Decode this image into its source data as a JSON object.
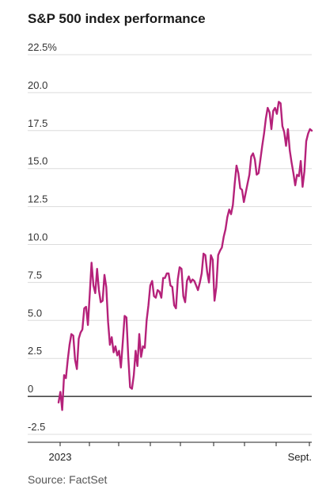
{
  "chart_data": {
    "type": "line",
    "title": "S&P 500 index performance",
    "source": "Source: FactSet",
    "ylim": [
      -2.5,
      22.5
    ],
    "y_ticks": [
      -2.5,
      0,
      2.5,
      5.0,
      7.5,
      10.0,
      12.5,
      15.0,
      17.5,
      20.0,
      22.5
    ],
    "y_tick_labels": [
      "-2.5",
      "0",
      "2.5",
      "5.0",
      "7.5",
      "10.0",
      "12.5",
      "15.0",
      "17.5",
      "20.0",
      "22.5%"
    ],
    "x_tick_labels": [
      "2023",
      "Sept."
    ],
    "grid": true,
    "series_color": "#b5227a",
    "series": [
      {
        "values": [
          -0.4,
          0.3,
          -0.9,
          1.4,
          1.2,
          2.4,
          3.4,
          4.1,
          4.0,
          2.4,
          1.8,
          3.8,
          4.2,
          4.4,
          5.8,
          5.9,
          4.7,
          6.7,
          8.8,
          7.3,
          6.8,
          8.4,
          7.0,
          6.2,
          6.3,
          8.0,
          7.2,
          4.9,
          3.4,
          3.9,
          2.9,
          3.3,
          2.7,
          3.0,
          1.9,
          3.6,
          5.3,
          5.2,
          2.6,
          0.6,
          0.5,
          1.4,
          3.0,
          2.0,
          4.1,
          2.6,
          3.3,
          3.2,
          5.0,
          6.0,
          7.3,
          7.6,
          6.6,
          6.5,
          7.0,
          6.9,
          6.5,
          7.8,
          7.8,
          8.1,
          8.1,
          7.3,
          7.2,
          6.0,
          5.8,
          7.7,
          8.5,
          8.4,
          6.6,
          6.2,
          7.6,
          7.9,
          7.5,
          7.7,
          7.6,
          7.3,
          7.0,
          7.5,
          8.1,
          9.4,
          9.3,
          8.2,
          7.5,
          9.3,
          9.0,
          6.3,
          7.2,
          9.3,
          9.6,
          9.8,
          10.5,
          11.0,
          11.8,
          12.3,
          12.0,
          12.6,
          14.0,
          15.2,
          14.7,
          13.7,
          13.6,
          12.8,
          13.4,
          14.0,
          14.6,
          15.8,
          16.0,
          15.6,
          14.6,
          14.7,
          15.6,
          16.5,
          17.3,
          18.3,
          19.0,
          18.7,
          17.6,
          18.8,
          19.0,
          18.6,
          19.4,
          19.3,
          17.8,
          17.4,
          16.5,
          17.6,
          16.2,
          15.4,
          14.7,
          13.9,
          14.6,
          14.5,
          15.5,
          13.8,
          14.8,
          16.8,
          17.3,
          17.6,
          17.5
        ]
      }
    ]
  }
}
